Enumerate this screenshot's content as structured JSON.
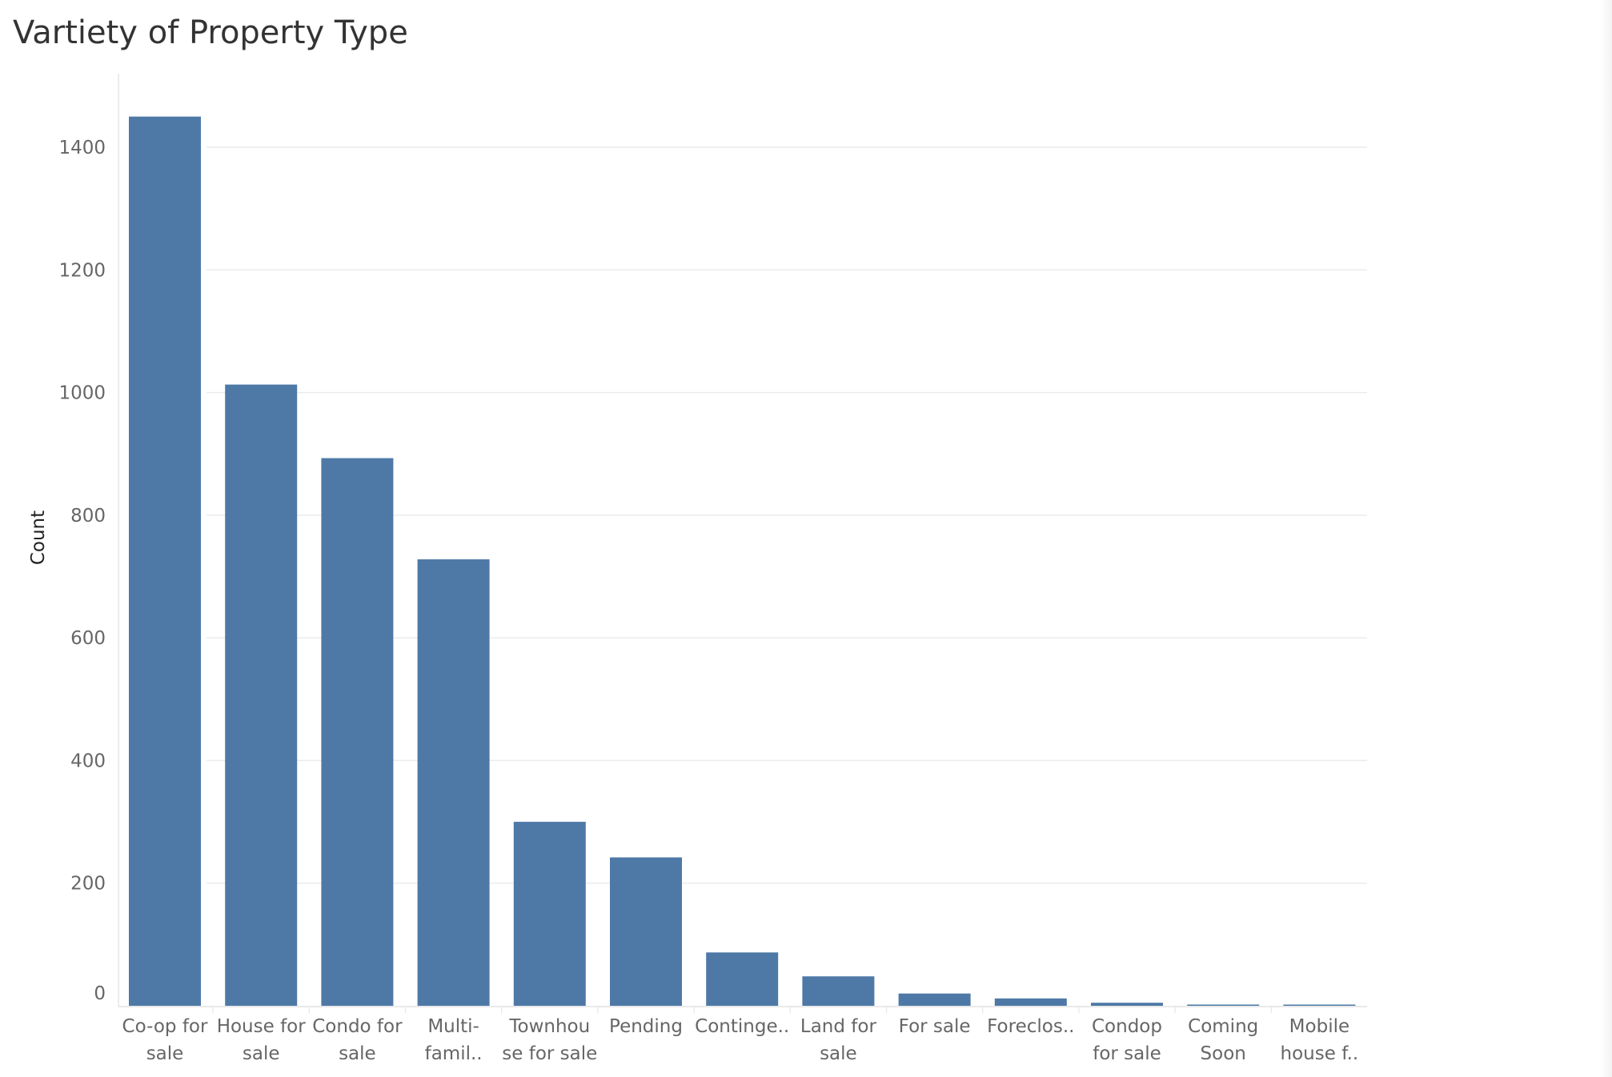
{
  "chart_data": {
    "type": "bar",
    "title": "Vartiety of Property Type",
    "xlabel": "",
    "ylabel": "Count",
    "ylim": [
      0,
      1500
    ],
    "yticks": [
      0,
      200,
      400,
      600,
      800,
      1000,
      1200,
      1400
    ],
    "grid": true,
    "bar_color": "#4e79a7",
    "categories": [
      [
        "Co-op for",
        "sale"
      ],
      [
        "House for",
        "sale"
      ],
      [
        "Condo for",
        "sale"
      ],
      [
        "Multi-",
        "famil.."
      ],
      [
        "Townhou",
        "se for sale"
      ],
      [
        "Pending"
      ],
      [
        "Continge.."
      ],
      [
        "Land for",
        "sale"
      ],
      [
        "For sale"
      ],
      [
        "Foreclos.."
      ],
      [
        "Condop",
        "for sale"
      ],
      [
        "Coming",
        "Soon"
      ],
      [
        "Mobile",
        "house f.."
      ]
    ],
    "values": [
      1450,
      1013,
      893,
      728,
      300,
      242,
      87,
      48,
      20,
      12,
      5,
      2,
      1
    ]
  }
}
